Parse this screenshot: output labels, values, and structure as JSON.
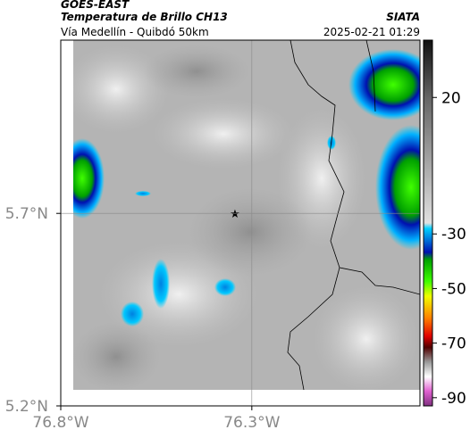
{
  "header": {
    "title": "GOES-EAST",
    "subtitle": "Temperatura de Brillo CH13",
    "source": "SIATA",
    "route": "Vía Medellín - Quibdó 50km",
    "timestamp": "2025-02-21 01:29"
  },
  "map": {
    "xlim": [
      -76.8,
      -75.86
    ],
    "ylim": [
      5.2,
      6.15
    ],
    "xticks": [
      {
        "value": -76.8,
        "label": "76.8°W"
      },
      {
        "value": -76.3,
        "label": "76.3°W"
      }
    ],
    "yticks": [
      {
        "value": 5.2,
        "label": "5.2°N"
      },
      {
        "value": 5.7,
        "label": "5.7°N"
      }
    ],
    "grid": true
  },
  "colorbar": {
    "lim": [
      -93,
      41
    ],
    "ticks": [
      20,
      -30,
      -50,
      -70,
      -90
    ]
  }
}
